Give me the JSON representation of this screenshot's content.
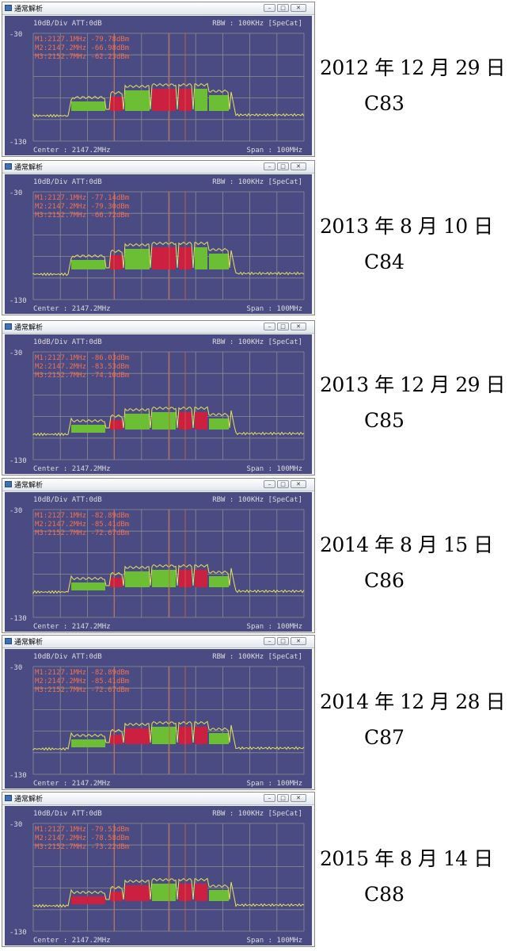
{
  "window_title": "通常解析",
  "window_controls": {
    "minimize": "–",
    "maximize": "□",
    "close": "✕"
  },
  "colors": {
    "screen_bg": "#4b4b84",
    "grid": "#8c8c8c",
    "trace": "#e8e35a",
    "marker_text": "#f07050",
    "marker_line": "#d86040",
    "label_text": "#dcdcdc",
    "green_block": "#6cbf34",
    "red_block": "#cc2040"
  },
  "panels": [
    {
      "header_left": "10dB/Div  ATT:0dB",
      "header_right": "RBW : 100KHz [SpeCat]",
      "ref_top": "-30",
      "ref_bottom": "-130",
      "footer_left": "Center : 2147.2MHz",
      "footer_right": "Span : 100MHz",
      "markers": [
        "M1:2127.1MHz -79.78dBm",
        "M2:2147.2MHz -66.98dBm",
        "M3:2152.7MHz -62.23dBm"
      ],
      "date": "2012 年 12 月 29 日",
      "code": "C83",
      "blocks": [
        "green",
        "red",
        "green",
        "red",
        "red",
        "green",
        "green"
      ]
    },
    {
      "header_left": "10dB/Div  ATT:0dB",
      "header_right": "RBW : 100KHz [SpeCat]",
      "ref_top": "-30",
      "ref_bottom": "-130",
      "footer_left": "Center : 2147.2MHz",
      "footer_right": "Span : 100MHz",
      "markers": [
        "M1:2127.1MHz -77.14dBm",
        "M2:2147.2MHz -79.30dBm",
        "M3:2152.7MHz -66.72dBm"
      ],
      "date": "2013 年 8 月 10 日",
      "code": "C84",
      "blocks": [
        "green",
        "red",
        "green",
        "red",
        "red",
        "green",
        "green"
      ]
    },
    {
      "header_left": "10dB/Div  ATT:0dB",
      "header_right": "RBW : 100KHz [SpeCat]",
      "ref_top": "-30",
      "ref_bottom": "-130",
      "footer_left": "Center : 2147.2MHz",
      "footer_right": "Span : 100MHz",
      "markers": [
        "M1:2127.1MHz -86.03dBm",
        "M2:2147.2MHz -83.53dBm",
        "M3:2152.7MHz -74.10dBm"
      ],
      "date": "2013 年 12 月 29 日",
      "code": "C85",
      "blocks": [
        "green",
        "red",
        "green",
        "green",
        "red",
        "red",
        "green"
      ]
    },
    {
      "header_left": "10dB/Div  ATT:0dB",
      "header_right": "RBW : 100KHz [SpeCat]",
      "ref_top": "-30",
      "ref_bottom": "-130",
      "footer_left": "Center : 2147.2MHz",
      "footer_right": "Span : 100MHz",
      "markers": [
        "M1:2127.1MHz -82.89dBm",
        "M2:2147.2MHz -85.41dBm",
        "M3:2152.7MHz -72.67dBm"
      ],
      "date": "2014 年 8 月 15 日",
      "code": "C86",
      "blocks": [
        "green",
        "red",
        "green",
        "green",
        "red",
        "red",
        "green"
      ]
    },
    {
      "header_left": "10dB/Div  ATT:0dB",
      "header_right": "RBW : 100KHz [SpeCat]",
      "ref_top": "-30",
      "ref_bottom": "-130",
      "footer_left": "Center : 2147.2MHz",
      "footer_right": "Span : 100MHz",
      "markers": [
        "M1:2127.1MHz -82.89dBm",
        "M2:2147.2MHz -85.41dBm",
        "M3:2152.7MHz -72.67dBm"
      ],
      "date": "2014 年 12 月 28 日",
      "code": "C87",
      "blocks": [
        "green",
        "red",
        "red",
        "green",
        "red",
        "red",
        "green"
      ]
    },
    {
      "header_left": "10dB/Div  ATT:0dB",
      "header_right": "RBW : 100KHz [SpeCat]",
      "ref_top": "-30",
      "ref_bottom": "-130",
      "footer_left": "Center : 2147.2MHz",
      "footer_right": "Span : 100MHz",
      "markers": [
        "M1:2127.1MHz -79.53dBm",
        "M2:2147.2MHz -78.58dBm",
        "M3:2152.7MHz -73.22dBm"
      ],
      "date": "2015 年 8 月 14 日",
      "code": "C88",
      "blocks": [
        "red",
        "red",
        "red",
        "green",
        "red",
        "red",
        "green"
      ]
    }
  ]
}
